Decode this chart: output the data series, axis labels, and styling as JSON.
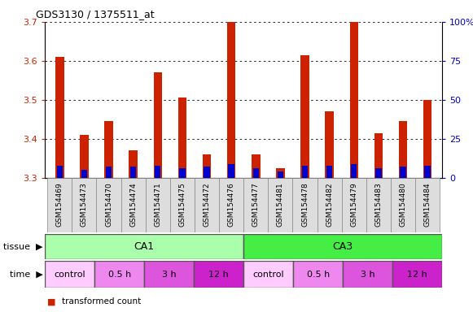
{
  "title": "GDS3130 / 1375511_at",
  "samples": [
    "GSM154469",
    "GSM154473",
    "GSM154470",
    "GSM154474",
    "GSM154471",
    "GSM154475",
    "GSM154472",
    "GSM154476",
    "GSM154477",
    "GSM154481",
    "GSM154478",
    "GSM154482",
    "GSM154479",
    "GSM154483",
    "GSM154480",
    "GSM154484"
  ],
  "red_values": [
    3.61,
    3.41,
    3.445,
    3.37,
    3.57,
    3.505,
    3.36,
    3.7,
    3.36,
    3.325,
    3.615,
    3.47,
    3.7,
    3.415,
    3.445,
    3.5
  ],
  "blue_pct": [
    8,
    5,
    7,
    7,
    8,
    6,
    7,
    9,
    6,
    4,
    8,
    8,
    9,
    6,
    7,
    8
  ],
  "ymin": 3.3,
  "ymax": 3.7,
  "yticks": [
    3.3,
    3.4,
    3.5,
    3.6,
    3.7
  ],
  "y2ticks": [
    0,
    25,
    50,
    75,
    100
  ],
  "y2labels": [
    "0",
    "25",
    "50",
    "75",
    "100%"
  ],
  "tissue_groups": [
    {
      "label": "CA1",
      "start": 0,
      "end": 8,
      "color": "#aaffaa"
    },
    {
      "label": "CA3",
      "start": 8,
      "end": 16,
      "color": "#44ee44"
    }
  ],
  "time_groups": [
    {
      "label": "control",
      "start": 0,
      "end": 2,
      "color": "#ffccff"
    },
    {
      "label": "0.5 h",
      "start": 2,
      "end": 4,
      "color": "#ee88ee"
    },
    {
      "label": "3 h",
      "start": 4,
      "end": 6,
      "color": "#dd55dd"
    },
    {
      "label": "12 h",
      "start": 6,
      "end": 8,
      "color": "#cc22cc"
    },
    {
      "label": "control",
      "start": 8,
      "end": 10,
      "color": "#ffccff"
    },
    {
      "label": "0.5 h",
      "start": 10,
      "end": 12,
      "color": "#ee88ee"
    },
    {
      "label": "3 h",
      "start": 12,
      "end": 14,
      "color": "#dd55dd"
    },
    {
      "label": "12 h",
      "start": 14,
      "end": 16,
      "color": "#cc22cc"
    }
  ],
  "red_color": "#cc2200",
  "blue_color": "#0000cc",
  "bar_width": 0.35,
  "tick_label_color_left": "#cc2200",
  "tick_label_color_right": "#0000cc",
  "xticklabel_bg": "#dddddd"
}
